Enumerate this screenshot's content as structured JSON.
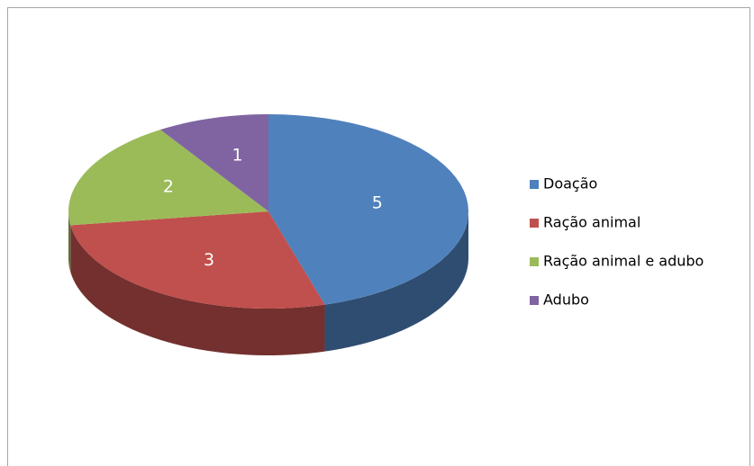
{
  "chart_data": {
    "type": "pie",
    "categories": [
      "Doação",
      "Ração animal",
      "Ração animal e adubo",
      "Adubo"
    ],
    "values": [
      5,
      3,
      2,
      1
    ],
    "colors": [
      "#4f81bd",
      "#c0504d",
      "#9bbb59",
      "#8064a2"
    ],
    "legend": "right"
  }
}
